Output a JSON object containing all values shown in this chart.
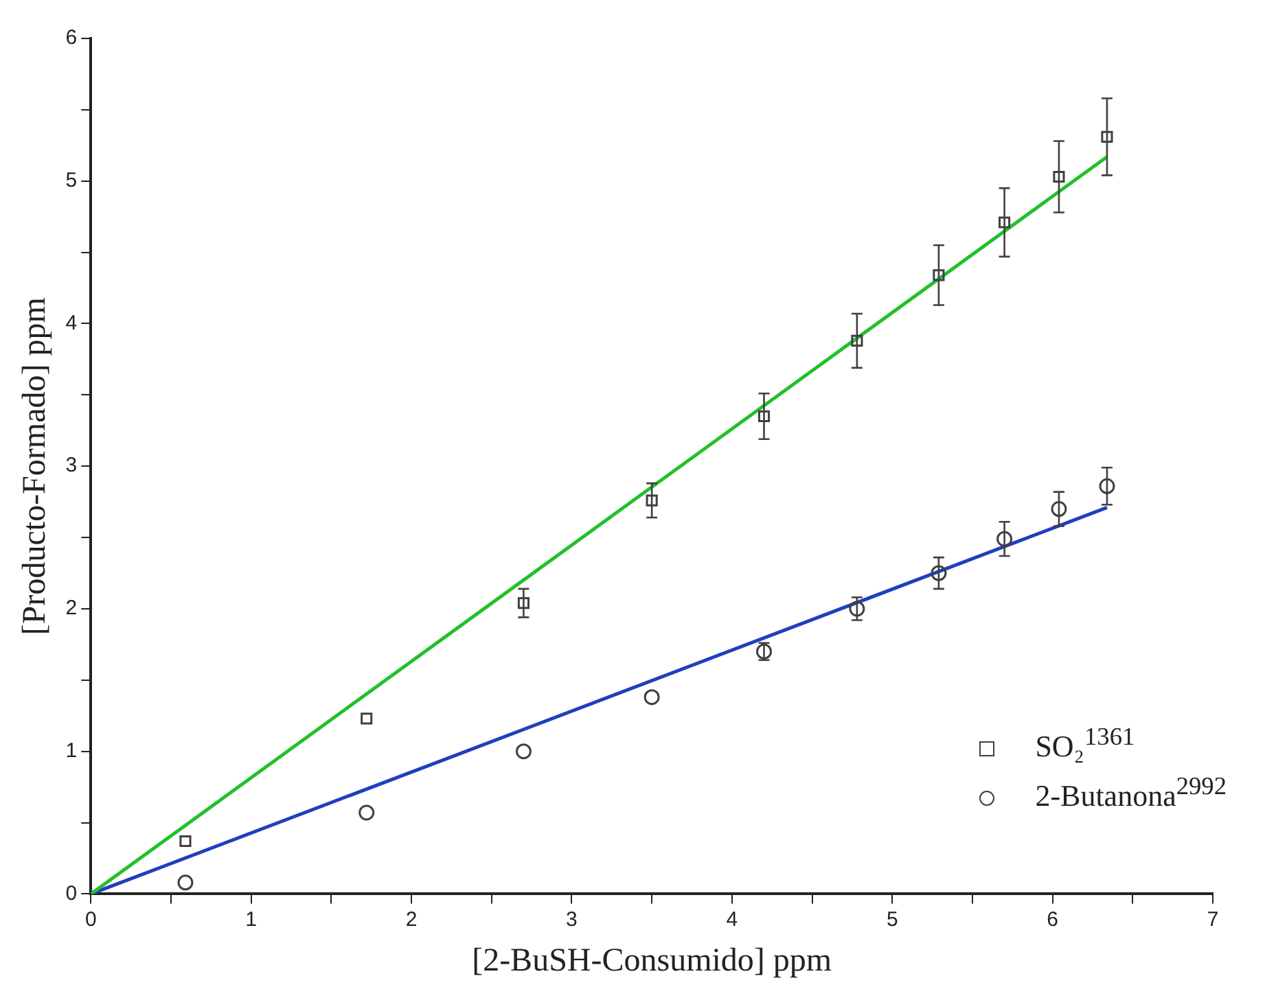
{
  "chart_data": {
    "type": "scatter",
    "xlabel": "[2-BuSH-Consumido] ppm",
    "ylabel": "[Producto-Formado] ppm",
    "xlim": [
      0,
      7
    ],
    "ylim": [
      0,
      6
    ],
    "xticks": [
      0,
      {
        "value": 0.5,
        "label": null
      },
      1,
      {
        "value": 1.5,
        "label": null
      },
      2,
      {
        "value": 2.5,
        "label": null
      },
      3,
      {
        "value": 3.5,
        "label": null
      },
      4,
      {
        "value": 4.5,
        "label": null
      },
      5,
      {
        "value": 5.5,
        "label": null
      },
      6,
      {
        "value": 6.5,
        "label": null
      },
      7
    ],
    "yticks": [
      0,
      {
        "value": 0.5,
        "label": null
      },
      1,
      {
        "value": 1.5,
        "label": null
      },
      2,
      {
        "value": 2.5,
        "label": null
      },
      3,
      {
        "value": 3.5,
        "label": null
      },
      4,
      {
        "value": 4.5,
        "label": null
      },
      5,
      {
        "value": 5.5,
        "label": null
      },
      6
    ],
    "grid": false,
    "legend": "bottom right",
    "series": [
      {
        "name": "SO₂$^{1361}$",
        "type": "scatter",
        "marker": "square",
        "color": "#404040",
        "x": [
          0.59,
          1.72,
          2.7,
          3.5,
          4.2,
          4.78,
          5.29,
          5.7,
          6.04,
          6.34
        ],
        "values": [
          0.37,
          1.23,
          2.04,
          2.76,
          3.35,
          3.88,
          4.34,
          4.71,
          5.03,
          5.31
        ],
        "errors": [
          null,
          null,
          0.1,
          0.12,
          0.16,
          0.19,
          0.21,
          0.24,
          0.25,
          0.27
        ]
      },
      {
        "name": "2-Butanona$^{2992}$",
        "type": "scatter",
        "marker": "circle",
        "color": "#404040",
        "x": [
          0.59,
          1.72,
          2.7,
          3.5,
          4.2,
          4.78,
          5.29,
          5.7,
          6.04,
          6.34
        ],
        "values": [
          0.08,
          0.57,
          1.0,
          1.38,
          1.7,
          2.0,
          2.25,
          2.49,
          2.7,
          2.86
        ],
        "errors": [
          null,
          null,
          null,
          null,
          0.06,
          0.08,
          0.11,
          0.12,
          0.12,
          0.13
        ]
      },
      {
        "type": "line",
        "marker": "none",
        "color": "#22c02a",
        "x": [
          0,
          6.34
        ],
        "values": [
          0,
          5.17
        ]
      },
      {
        "type": "line",
        "marker": "none",
        "color": "#1f3fbf",
        "x": [
          0,
          6.34
        ],
        "values": [
          0,
          2.71
        ]
      }
    ]
  }
}
